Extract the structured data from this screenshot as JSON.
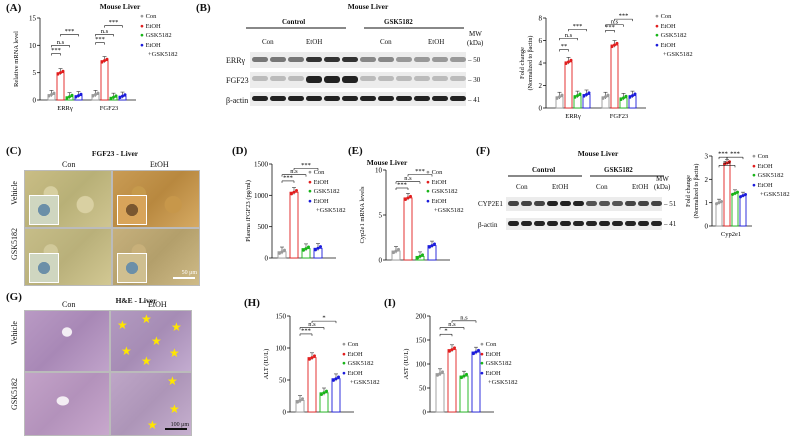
{
  "panels": {
    "A": "(A)",
    "B": "(B)",
    "C": "(C)",
    "D": "(D)",
    "E": "(E)",
    "F": "(F)",
    "G": "(G)",
    "H": "(H)",
    "I": "(I)"
  },
  "legend": {
    "con": "Con",
    "etoh": "EtOH",
    "gsk": "GSK5182",
    "etohgsk1": "EtOH",
    "etohgsk2": "+GSK5182",
    "colors": {
      "con": "#9a9a9a",
      "etoh": "#e11d1d",
      "gsk": "#18b418",
      "etohgsk": "#1a1adb"
    }
  },
  "sig": {
    "ns": "n.s",
    "s1": "*",
    "s2": "**",
    "s3": "***"
  },
  "panelA": {
    "title": "Mouse Liver",
    "ylabel": "Relative mRNA level",
    "yticks": [
      "0",
      "5",
      "10",
      "15"
    ],
    "groups": [
      "ERRγ",
      "FGF23"
    ]
  },
  "panelB": {
    "title": "Mouse Liver",
    "control": "Control",
    "gsk": "GSK5182",
    "con": "Con",
    "etoh": "EtOH",
    "mw": "MW",
    "kda": "(kDa)",
    "rows": [
      "ERRγ",
      "FGF23",
      "β-actin"
    ],
    "mws": [
      "50",
      "30",
      "41"
    ]
  },
  "panelB2": {
    "ylabel1": "Fold change",
    "ylabel2": "(Normalized to βactin)",
    "yticks": [
      "0",
      "2",
      "4",
      "6",
      "8"
    ],
    "groups": [
      "ERRγ",
      "FGF23"
    ]
  },
  "panelC": {
    "title": "FGF23 - Liver",
    "con": "Con",
    "etoh": "EtOH",
    "vehicle": "Vehicle",
    "gsk": "GSK5182",
    "scale": "50 μm"
  },
  "panelD": {
    "ylabel": "Plasma iFGF23 (pg/ml)",
    "yticks": [
      "0",
      "500",
      "1000",
      "1500"
    ]
  },
  "panelE": {
    "title": "Mouse Liver",
    "ylabel": "Cyp2e1 mRNA levels",
    "yticks": [
      "0",
      "5",
      "10"
    ]
  },
  "panelF": {
    "title": "Mouse Liver",
    "control": "Control",
    "gsk": "GSK5182",
    "con": "Con",
    "etoh": "EtOH",
    "mw": "MW",
    "kda": "(kDa)",
    "rows": [
      "CYP2E1",
      "β-actin"
    ],
    "mws": [
      "51",
      "41"
    ]
  },
  "panelF2": {
    "ylabel1": "Fold change",
    "ylabel2": "(Normalized to βactin)",
    "yticks": [
      "0",
      "1",
      "2",
      "3"
    ],
    "xlabel": "Cyp2e1"
  },
  "panelG": {
    "title": "H&E - Liver",
    "con": "Con",
    "etoh": "EtOH",
    "vehicle": "Vehicle",
    "gsk": "GSK5182",
    "scale": "100 μm"
  },
  "panelH": {
    "ylabel": "ALT (IU/L)",
    "yticks": [
      "0",
      "50",
      "100",
      "150"
    ]
  },
  "panelI": {
    "ylabel": "AST (IU/L)",
    "yticks": [
      "0",
      "50",
      "100",
      "150",
      "200"
    ]
  },
  "chart_data": [
    {
      "panel": "A",
      "type": "bar",
      "categories": [
        "ERRγ",
        "FGF23"
      ],
      "ylabel": "Relative mRNA level",
      "ylim": [
        0,
        15
      ],
      "series": [
        {
          "name": "Con",
          "values": [
            1.0,
            1.0
          ]
        },
        {
          "name": "EtOH",
          "values": [
            5.0,
            7.2
          ]
        },
        {
          "name": "GSK5182",
          "values": [
            0.6,
            0.5
          ]
        },
        {
          "name": "EtOH +GSK5182",
          "values": [
            0.8,
            0.7
          ]
        }
      ]
    },
    {
      "panel": "B",
      "type": "bar",
      "categories": [
        "ERRγ",
        "FGF23"
      ],
      "ylabel": "Fold change (Normalized to βactin)",
      "ylim": [
        0,
        8
      ],
      "series": [
        {
          "name": "Con",
          "values": [
            1.0,
            1.0
          ]
        },
        {
          "name": "EtOH",
          "values": [
            4.1,
            5.6
          ]
        },
        {
          "name": "GSK5182",
          "values": [
            1.1,
            0.9
          ]
        },
        {
          "name": "EtOH +GSK5182",
          "values": [
            1.2,
            1.1
          ]
        }
      ]
    },
    {
      "panel": "D",
      "type": "bar",
      "categories": [
        "Con",
        "EtOH",
        "GSK5182",
        "EtOH +GSK5182"
      ],
      "ylabel": "Plasma iFGF23 (pg/ml)",
      "ylim": [
        0,
        1500
      ],
      "values": [
        100,
        1050,
        150,
        155
      ]
    },
    {
      "panel": "E",
      "type": "bar",
      "categories": [
        "Con",
        "EtOH",
        "GSK5182",
        "EtOH +GSK5182"
      ],
      "ylabel": "Cyp2e1 mRNA levels",
      "ylim": [
        0,
        10
      ],
      "values": [
        1.0,
        6.9,
        0.4,
        1.6
      ]
    },
    {
      "panel": "F",
      "type": "bar",
      "categories": [
        "Cyp2e1"
      ],
      "ylabel": "Fold change (Normalized to βactin)",
      "ylim": [
        0,
        3
      ],
      "series": [
        {
          "name": "Con",
          "values": [
            1.0
          ]
        },
        {
          "name": "EtOH",
          "values": [
            2.7
          ]
        },
        {
          "name": "GSK5182",
          "values": [
            1.4
          ]
        },
        {
          "name": "EtOH +GSK5182",
          "values": [
            1.3
          ]
        }
      ]
    },
    {
      "panel": "H",
      "type": "bar",
      "categories": [
        "Con",
        "EtOH",
        "GSK5182",
        "EtOH +GSK5182"
      ],
      "ylabel": "ALT (IU/L)",
      "ylim": [
        0,
        150
      ],
      "values": [
        18,
        85,
        30,
        52
      ]
    },
    {
      "panel": "I",
      "type": "bar",
      "categories": [
        "Con",
        "EtOH",
        "GSK5182",
        "EtOH +GSK5182"
      ],
      "ylabel": "AST (IU/L)",
      "ylim": [
        0,
        200
      ],
      "values": [
        80,
        130,
        75,
        125
      ]
    }
  ]
}
